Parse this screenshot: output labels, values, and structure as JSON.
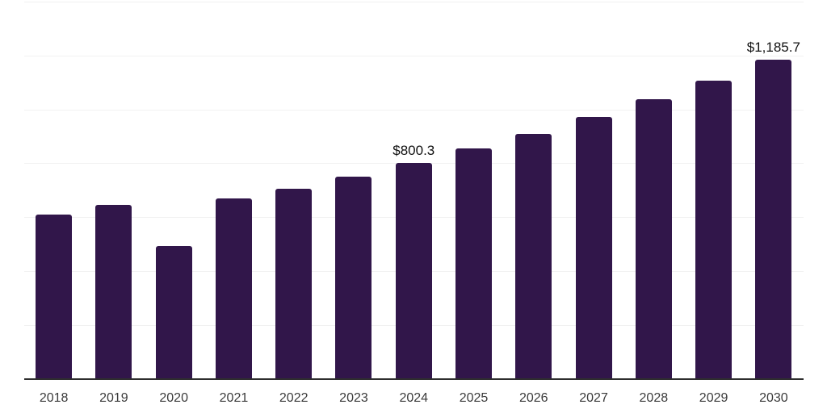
{
  "chart_data": {
    "type": "bar",
    "title": "",
    "xlabel": "",
    "ylabel": "",
    "categories": [
      "2018",
      "2019",
      "2020",
      "2021",
      "2022",
      "2023",
      "2024",
      "2025",
      "2026",
      "2027",
      "2028",
      "2029",
      "2030"
    ],
    "values": [
      608,
      645,
      494,
      669,
      705,
      750,
      800.3,
      854,
      908,
      971,
      1038,
      1107,
      1185.7
    ],
    "bar_labels": [
      "",
      "",
      "",
      "",
      "",
      "",
      "$800.3",
      "",
      "",
      "",
      "",
      "",
      "$1,185.7"
    ],
    "ylim": [
      0,
      1400
    ],
    "gridline_step": 200,
    "grid": "horizontal",
    "y_tick_labels_visible": false,
    "legend": "none",
    "colors": {
      "bar_fill": "#31164a",
      "axis_line": "#2e2e2e",
      "gridline": "#f1f1f1",
      "value_label": "#101010",
      "tick_label": "#3a3a3a",
      "background": "#ffffff"
    }
  }
}
